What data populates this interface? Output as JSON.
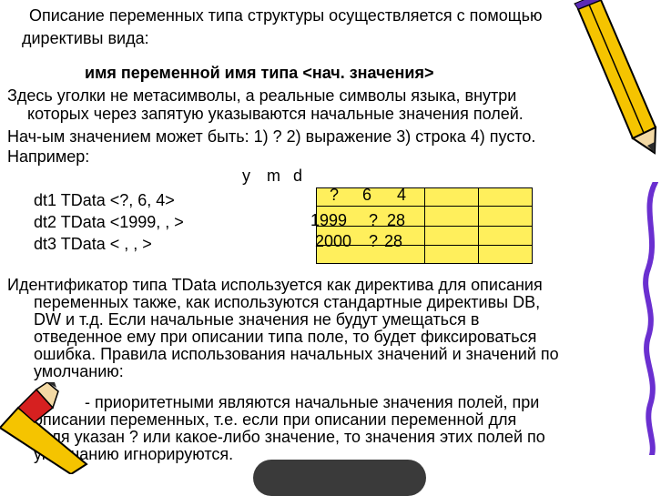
{
  "paragraphs": {
    "intro_line1": "Описание переменных типа структуры осуществляется с помощью",
    "intro_line2": "директивы вида:",
    "directive": "имя переменной   имя типа   <нач. значения>",
    "note_line1": "Здесь уголки не метасимволы, а реальные символы языка, внутри",
    "note_line2": "которых через запятую указываются начальные значения полей.",
    "init_line": "Нач-ым значением может быть: 1) ? 2) выражение 3) строка 4) пусто.",
    "example_label": "Например:"
  },
  "example": {
    "field_headers": [
      "y",
      "m",
      "d"
    ],
    "declarations": [
      "dt1  TData  <?, 6, 4>",
      "dt2  TData  <1999, , >",
      "dt3  TData  < , , >"
    ],
    "table_rows": [
      {
        "y": "?",
        "m": "6",
        "d": "4"
      },
      {
        "y": "1999",
        "m": "?",
        "d": "28"
      },
      {
        "y": "2000",
        "m": "?",
        "d": "28"
      }
    ]
  },
  "body": {
    "p1_line1": "Идентификатор типа TData используется как директива для описания",
    "p1_line2": "переменных также, как используются стандартные директивы DB,",
    "p1_line3": "DW и т.д. Если начальные значения не будут умещаться в",
    "p1_line4": "отведенное ему при описании типа поле, то будет фиксироваться",
    "p1_line5": "ошибка. Правила использования начальных значений и значений по",
    "p1_line6": "умолчанию:",
    "p2_line1": "- приоритетными являются начальные значения полей,    при",
    "p2_line2": "описании переменных, т.е. если при описании переменной       для",
    "p2_line3": "поля указан ? или какое-либо значение, то значения этих  полей по",
    "p2_line4": "умолчанию игнорируются."
  },
  "colors": {
    "table_fill": "#ffef5c",
    "pencil_yellow": "#f5c400",
    "pencil_accent": "#5b2bb5"
  },
  "decorations": [
    "pencil-icon",
    "pencil-icon",
    "pencil-icon",
    "squiggle-icon"
  ]
}
